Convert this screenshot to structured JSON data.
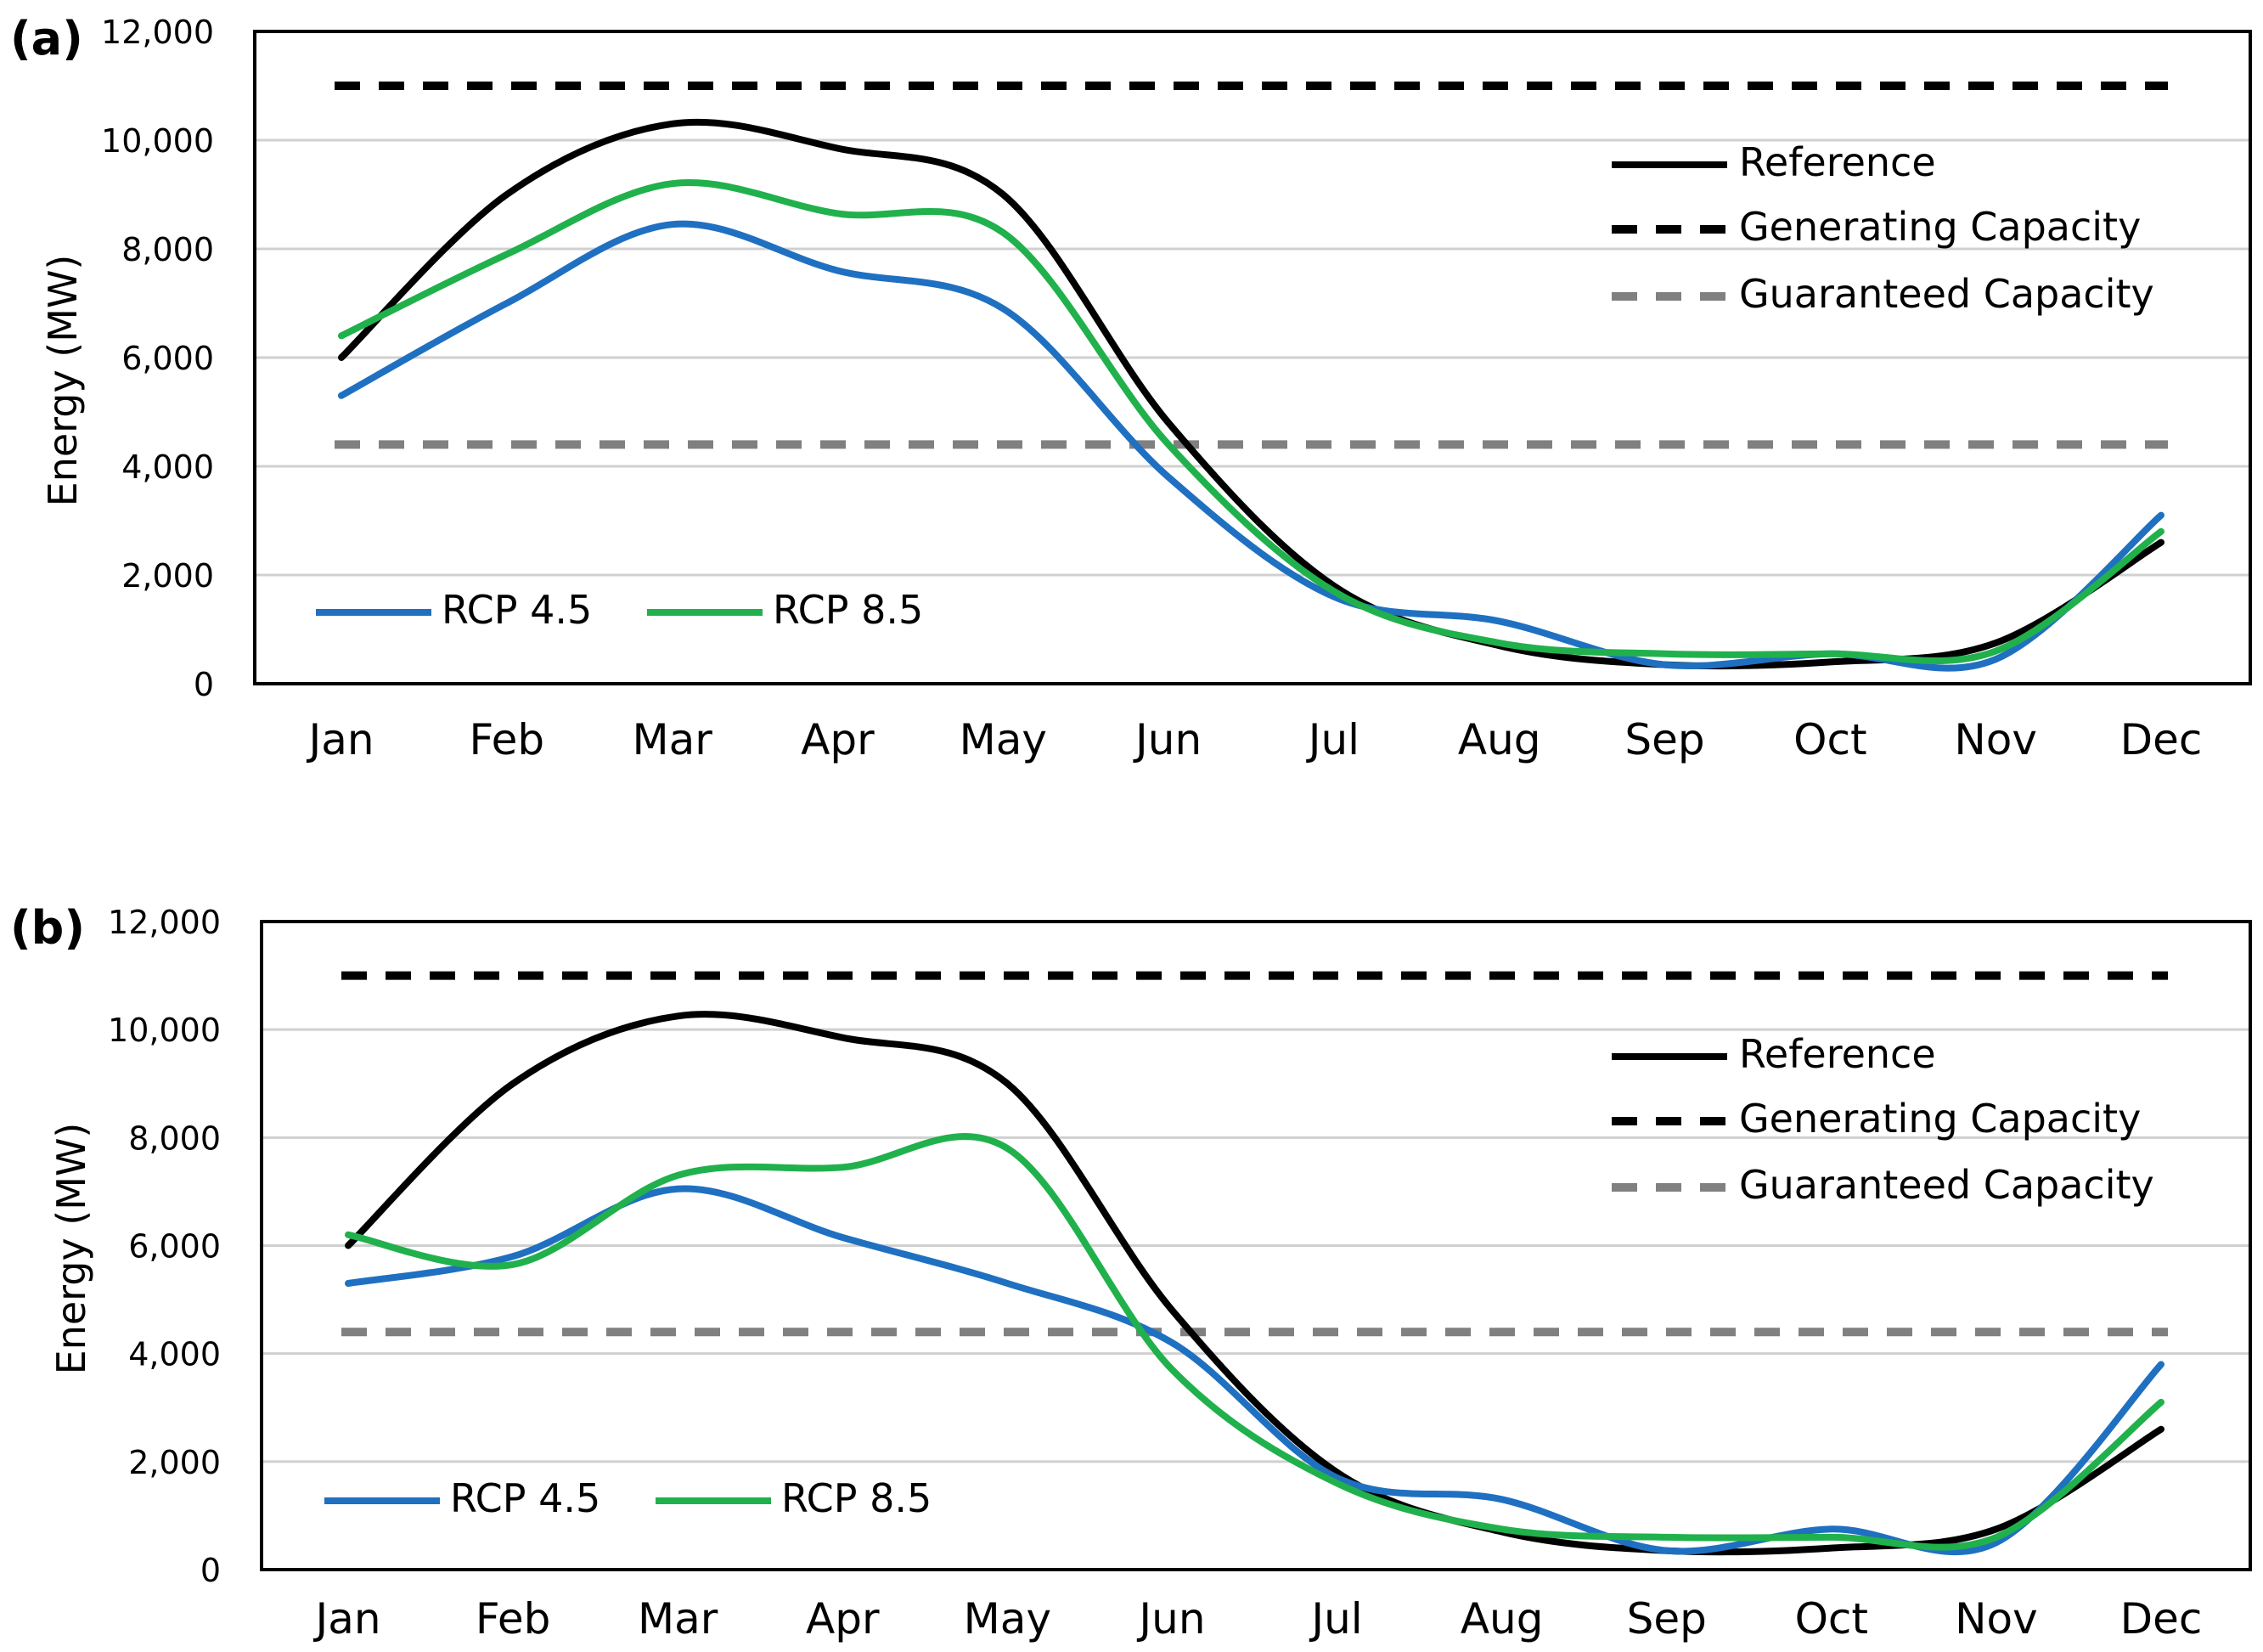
{
  "figure": {
    "panels": [
      "(a)",
      "(b)"
    ]
  },
  "chart_data": [
    {
      "type": "line",
      "panel_label": "(a)",
      "ylabel": "Energy (MW)",
      "ylim": [
        0,
        12000
      ],
      "yticks": [
        "0",
        "2,000",
        "4,000",
        "6,000",
        "8,000",
        "10,000",
        "12,000"
      ],
      "ytick_values": [
        0,
        2000,
        4000,
        6000,
        8000,
        10000,
        12000
      ],
      "categories": [
        "Jan",
        "Feb",
        "Mar",
        "Apr",
        "May",
        "Jun",
        "Jul",
        "Aug",
        "Sep",
        "Oct",
        "Nov",
        "Dec"
      ],
      "grid": true,
      "series": [
        {
          "name": "Reference",
          "color": "#000000",
          "style": "solid",
          "values": [
            6000,
            9000,
            10300,
            9850,
            9000,
            4800,
            1800,
            700,
            350,
            400,
            750,
            2600
          ]
        },
        {
          "name": "Generating Capacity",
          "color": "#000000",
          "style": "dashed",
          "values": [
            11000,
            11000,
            11000,
            11000,
            11000,
            11000,
            11000,
            11000,
            11000,
            11000,
            11000,
            11000
          ]
        },
        {
          "name": "Guaranteed Capacity",
          "color": "#808080",
          "style": "dashed",
          "values": [
            4400,
            4400,
            4400,
            4400,
            4400,
            4400,
            4400,
            4400,
            4400,
            4400,
            4400,
            4400
          ]
        },
        {
          "name": "RCP 4.5",
          "color": "#1f70c1",
          "style": "solid",
          "values": [
            5300,
            7000,
            8450,
            7600,
            6900,
            3800,
            1600,
            1150,
            350,
            550,
            450,
            3100
          ]
        },
        {
          "name": "RCP 8.5",
          "color": "#20b14c",
          "style": "solid",
          "values": [
            6400,
            7900,
            9200,
            8650,
            8300,
            4400,
            1700,
            750,
            550,
            550,
            600,
            2800
          ]
        }
      ],
      "legend_upper": [
        "Reference",
        "Generating Capacity",
        "Guaranteed Capacity"
      ],
      "legend_lower": [
        "RCP 4.5",
        "RCP 8.5"
      ]
    },
    {
      "type": "line",
      "panel_label": "(b)",
      "ylabel": "Energy (MW)",
      "ylim": [
        0,
        12000
      ],
      "yticks": [
        "0",
        "2,000",
        "4,000",
        "6,000",
        "8,000",
        "10,000",
        "12,000"
      ],
      "ytick_values": [
        0,
        2000,
        4000,
        6000,
        8000,
        10000,
        12000
      ],
      "categories": [
        "Jan",
        "Feb",
        "Mar",
        "Apr",
        "May",
        "Jun",
        "Jul",
        "Aug",
        "Sep",
        "Oct",
        "Nov",
        "Dec"
      ],
      "grid": true,
      "series": [
        {
          "name": "Reference",
          "color": "#000000",
          "style": "solid",
          "values": [
            6000,
            9000,
            10250,
            9850,
            9000,
            4800,
            1800,
            700,
            350,
            400,
            750,
            2600
          ]
        },
        {
          "name": "Generating Capacity",
          "color": "#000000",
          "style": "dashed",
          "values": [
            11000,
            11000,
            11000,
            11000,
            11000,
            11000,
            11000,
            11000,
            11000,
            11000,
            11000,
            11000
          ]
        },
        {
          "name": "Guaranteed Capacity",
          "color": "#808080",
          "style": "dashed",
          "values": [
            4400,
            4400,
            4400,
            4400,
            4400,
            4400,
            4400,
            4400,
            4400,
            4400,
            4400,
            4400
          ]
        },
        {
          "name": "RCP 4.5",
          "color": "#1f70c1",
          "style": "solid",
          "values": [
            5300,
            5800,
            7050,
            6150,
            5300,
            4200,
            1700,
            1300,
            350,
            750,
            500,
            3800
          ]
        },
        {
          "name": "RCP 8.5",
          "color": "#20b14c",
          "style": "solid",
          "values": [
            6200,
            5650,
            7300,
            7450,
            7800,
            3700,
            1600,
            750,
            600,
            600,
            600,
            3100
          ]
        }
      ],
      "legend_upper": [
        "Reference",
        "Generating Capacity",
        "Guaranteed Capacity"
      ],
      "legend_lower": [
        "RCP 4.5",
        "RCP 8.5"
      ]
    }
  ]
}
